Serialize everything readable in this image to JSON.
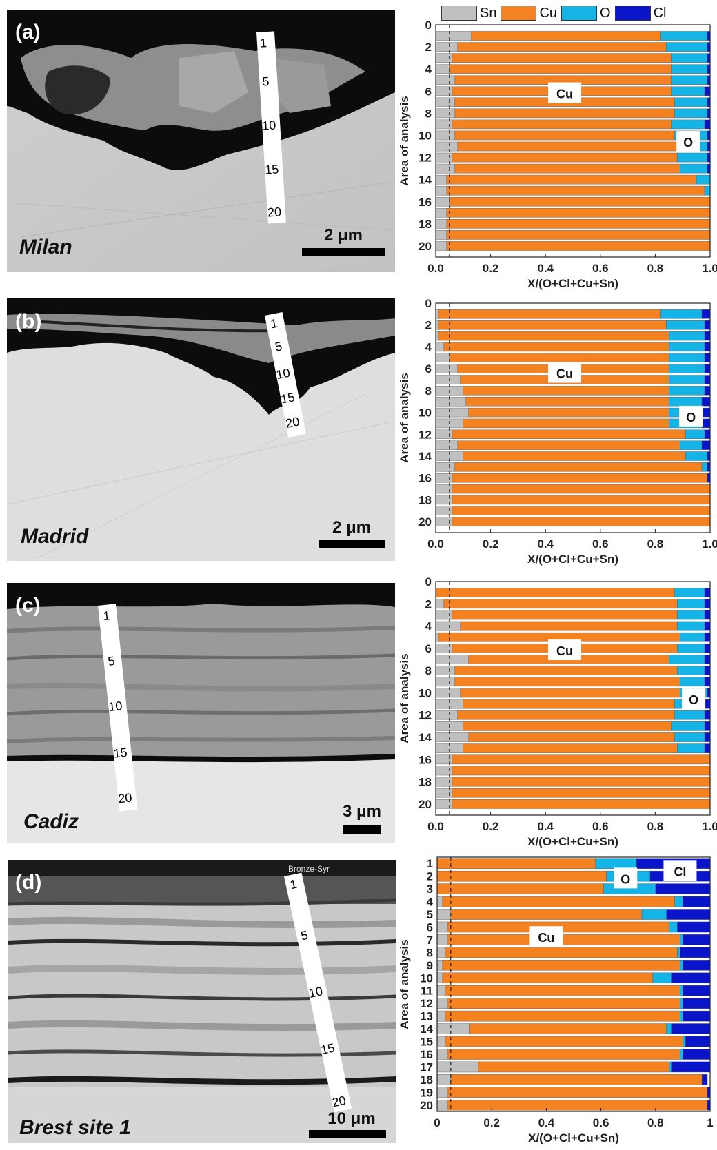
{
  "colors": {
    "Sn": "#c0c0c0",
    "Cu": "#f58220",
    "O": "#14b4e6",
    "Cl": "#0a14c8"
  },
  "legend": [
    {
      "label": "Sn",
      "color": "#c0c0c0"
    },
    {
      "label": "Cu",
      "color": "#f58220"
    },
    {
      "label": "O",
      "color": "#14b4e6"
    },
    {
      "label": "Cl",
      "color": "#0a14c8"
    }
  ],
  "panels": [
    {
      "letter": "(a)",
      "site": "Milan",
      "scale": "2 μm",
      "ticks": [
        "1",
        "5",
        "10",
        "15",
        "20"
      ]
    },
    {
      "letter": "(b)",
      "site": "Madrid",
      "scale": "2 μm",
      "ticks": [
        "1",
        "5",
        "10",
        "15",
        "20"
      ]
    },
    {
      "letter": "(c)",
      "site": "Cadiz",
      "scale": "3 μm",
      "ticks": [
        "1",
        "5",
        "10",
        "15",
        "20"
      ]
    },
    {
      "letter": "(d)",
      "site": "Brest site 1",
      "scale": "10 μm",
      "ticks": [
        "1",
        "5",
        "10",
        "15",
        "20"
      ],
      "watermark": "Bronze-Syr"
    }
  ],
  "chart_data": [
    {
      "type": "bar",
      "orientation": "horizontal",
      "stacked": true,
      "xlabel": "X/(O+Cl+Cu+Sn)",
      "ylabel": "Area of analysis",
      "xlim": [
        0,
        1
      ],
      "ylim": [
        0,
        21
      ],
      "x_ticks": [
        "0.0",
        "0.2",
        "0.4",
        "0.6",
        "0.8",
        "1.0"
      ],
      "y_ticks": [
        "0",
        "2",
        "4",
        "6",
        "8",
        "10",
        "12",
        "14",
        "16",
        "18",
        "20"
      ],
      "categories": [
        1,
        2,
        3,
        4,
        5,
        6,
        7,
        8,
        9,
        10,
        11,
        12,
        13,
        14,
        15,
        16,
        17,
        18,
        19,
        20
      ],
      "annotations": [
        "Cu",
        "O"
      ],
      "series": [
        {
          "name": "Sn",
          "values": [
            0.13,
            0.08,
            0.06,
            0.05,
            0.07,
            0.06,
            0.07,
            0.07,
            0.06,
            0.07,
            0.08,
            0.06,
            0.07,
            0.04,
            0.04,
            0.05,
            0.04,
            0.04,
            0.04,
            0.04
          ]
        },
        {
          "name": "Cu",
          "values": [
            0.69,
            0.76,
            0.8,
            0.81,
            0.79,
            0.8,
            0.8,
            0.8,
            0.8,
            0.8,
            0.81,
            0.82,
            0.82,
            0.91,
            0.94,
            0.95,
            0.96,
            0.96,
            0.96,
            0.96
          ]
        },
        {
          "name": "O",
          "values": [
            0.17,
            0.15,
            0.13,
            0.13,
            0.13,
            0.12,
            0.12,
            0.12,
            0.12,
            0.12,
            0.1,
            0.11,
            0.1,
            0.05,
            0.02,
            0,
            0,
            0,
            0,
            0
          ]
        },
        {
          "name": "Cl",
          "values": [
            0.01,
            0.01,
            0.01,
            0.01,
            0.01,
            0.02,
            0.01,
            0.01,
            0.02,
            0.01,
            0.01,
            0.01,
            0.01,
            0,
            0,
            0,
            0,
            0,
            0,
            0
          ]
        }
      ]
    },
    {
      "type": "bar",
      "orientation": "horizontal",
      "stacked": true,
      "xlabel": "X/(O+Cl+Cu+Sn)",
      "ylabel": "Area of analysis",
      "xlim": [
        0,
        1
      ],
      "ylim": [
        0,
        21
      ],
      "x_ticks": [
        "0.0",
        "0.2",
        "0.4",
        "0.6",
        "0.8",
        "1.0"
      ],
      "y_ticks": [
        "0",
        "2",
        "4",
        "6",
        "8",
        "10",
        "12",
        "14",
        "16",
        "18",
        "20"
      ],
      "categories": [
        1,
        2,
        3,
        4,
        5,
        6,
        7,
        8,
        9,
        10,
        11,
        12,
        13,
        14,
        15,
        16,
        17,
        18,
        19,
        20
      ],
      "annotations": [
        "Cu",
        "O"
      ],
      "series": [
        {
          "name": "Sn",
          "values": [
            0.01,
            0.01,
            0.01,
            0.03,
            0.05,
            0.08,
            0.09,
            0.1,
            0.11,
            0.12,
            0.1,
            0.06,
            0.08,
            0.1,
            0.07,
            0.06,
            0.06,
            0.06,
            0.06,
            0.06
          ]
        },
        {
          "name": "Cu",
          "values": [
            0.81,
            0.83,
            0.84,
            0.82,
            0.8,
            0.77,
            0.76,
            0.75,
            0.74,
            0.73,
            0.75,
            0.85,
            0.81,
            0.81,
            0.9,
            0.93,
            0.94,
            0.94,
            0.94,
            0.94
          ]
        },
        {
          "name": "O",
          "values": [
            0.15,
            0.14,
            0.13,
            0.13,
            0.13,
            0.13,
            0.13,
            0.13,
            0.12,
            0.12,
            0.12,
            0.07,
            0.08,
            0.08,
            0.02,
            0,
            0,
            0,
            0,
            0
          ]
        },
        {
          "name": "Cl",
          "values": [
            0.03,
            0.02,
            0.02,
            0.02,
            0.02,
            0.02,
            0.02,
            0.02,
            0.03,
            0.03,
            0.03,
            0.02,
            0.03,
            0.01,
            0.01,
            0.01,
            0,
            0,
            0,
            0
          ]
        }
      ]
    },
    {
      "type": "bar",
      "orientation": "horizontal",
      "stacked": true,
      "xlabel": "X/(O+Cl+Cu+Sn)",
      "ylabel": "Area of analysis",
      "xlim": [
        0,
        1
      ],
      "ylim": [
        0,
        21
      ],
      "x_ticks": [
        "0.0",
        "0.2",
        "0.4",
        "0.6",
        "0.8",
        "1.0"
      ],
      "y_ticks": [
        "0",
        "2",
        "4",
        "6",
        "8",
        "10",
        "12",
        "14",
        "16",
        "18",
        "20"
      ],
      "categories": [
        1,
        2,
        3,
        4,
        5,
        6,
        7,
        8,
        9,
        10,
        11,
        12,
        13,
        14,
        15,
        16,
        17,
        18,
        19,
        20
      ],
      "annotations": [
        "Cu",
        "O"
      ],
      "series": [
        {
          "name": "Sn",
          "values": [
            0.0,
            0.03,
            0.06,
            0.09,
            0.01,
            0.06,
            0.12,
            0.07,
            0.07,
            0.09,
            0.1,
            0.08,
            0.1,
            0.12,
            0.1,
            0.06,
            0.06,
            0.06,
            0.06,
            0.06
          ]
        },
        {
          "name": "Cu",
          "values": [
            0.87,
            0.85,
            0.82,
            0.79,
            0.88,
            0.82,
            0.73,
            0.81,
            0.82,
            0.8,
            0.77,
            0.79,
            0.76,
            0.75,
            0.78,
            0.94,
            0.94,
            0.94,
            0.94,
            0.94
          ]
        },
        {
          "name": "O",
          "values": [
            0.11,
            0.1,
            0.1,
            0.1,
            0.09,
            0.1,
            0.13,
            0.1,
            0.09,
            0.1,
            0.11,
            0.11,
            0.12,
            0.11,
            0.1,
            0,
            0,
            0,
            0,
            0
          ]
        },
        {
          "name": "Cl",
          "values": [
            0.02,
            0.02,
            0.02,
            0.02,
            0.02,
            0.02,
            0.02,
            0.02,
            0.02,
            0.01,
            0.02,
            0.02,
            0.02,
            0.02,
            0.02,
            0,
            0,
            0,
            0,
            0
          ]
        }
      ]
    },
    {
      "type": "bar",
      "orientation": "horizontal",
      "stacked": true,
      "xlabel": "X/(O+Cl+Cu+Sn)",
      "ylabel": "Area of analysis",
      "xlim": [
        0,
        1
      ],
      "ylim": [
        0.5,
        20.5
      ],
      "x_ticks": [
        "0",
        "0.2",
        "0.4",
        "0.6",
        "0.8",
        "1"
      ],
      "y_ticks": [
        "1",
        "2",
        "3",
        "4",
        "5",
        "6",
        "7",
        "8",
        "9",
        "10",
        "11",
        "12",
        "13",
        "14",
        "15",
        "16",
        "17",
        "18",
        "19",
        "20"
      ],
      "categories": [
        1,
        2,
        3,
        4,
        5,
        6,
        7,
        8,
        9,
        10,
        11,
        12,
        13,
        14,
        15,
        16,
        17,
        18,
        19,
        20
      ],
      "annotations": [
        "O",
        "Cl",
        "Cu"
      ],
      "series": [
        {
          "name": "Sn",
          "values": [
            0.0,
            0.0,
            0.0,
            0.02,
            0.05,
            0.04,
            0.04,
            0.03,
            0.02,
            0.02,
            0.03,
            0.04,
            0.03,
            0.12,
            0.03,
            0.04,
            0.15,
            0.05,
            0.04,
            0.04
          ]
        },
        {
          "name": "Cu",
          "values": [
            0.58,
            0.62,
            0.61,
            0.85,
            0.7,
            0.81,
            0.85,
            0.85,
            0.87,
            0.77,
            0.86,
            0.85,
            0.86,
            0.72,
            0.87,
            0.85,
            0.7,
            0.92,
            0.95,
            0.95
          ]
        },
        {
          "name": "O",
          "values": [
            0.15,
            0.16,
            0.19,
            0.03,
            0.09,
            0.03,
            0.01,
            0.01,
            0.01,
            0.07,
            0.01,
            0.01,
            0.01,
            0.02,
            0.01,
            0.01,
            0.01,
            0.0,
            0.0,
            0.0
          ]
        },
        {
          "name": "Cl",
          "values": [
            0.27,
            0.22,
            0.2,
            0.1,
            0.16,
            0.12,
            0.1,
            0.11,
            0.1,
            0.14,
            0.1,
            0.1,
            0.1,
            0.14,
            0.09,
            0.1,
            0.14,
            0.02,
            0.01,
            0.01
          ]
        }
      ]
    }
  ]
}
